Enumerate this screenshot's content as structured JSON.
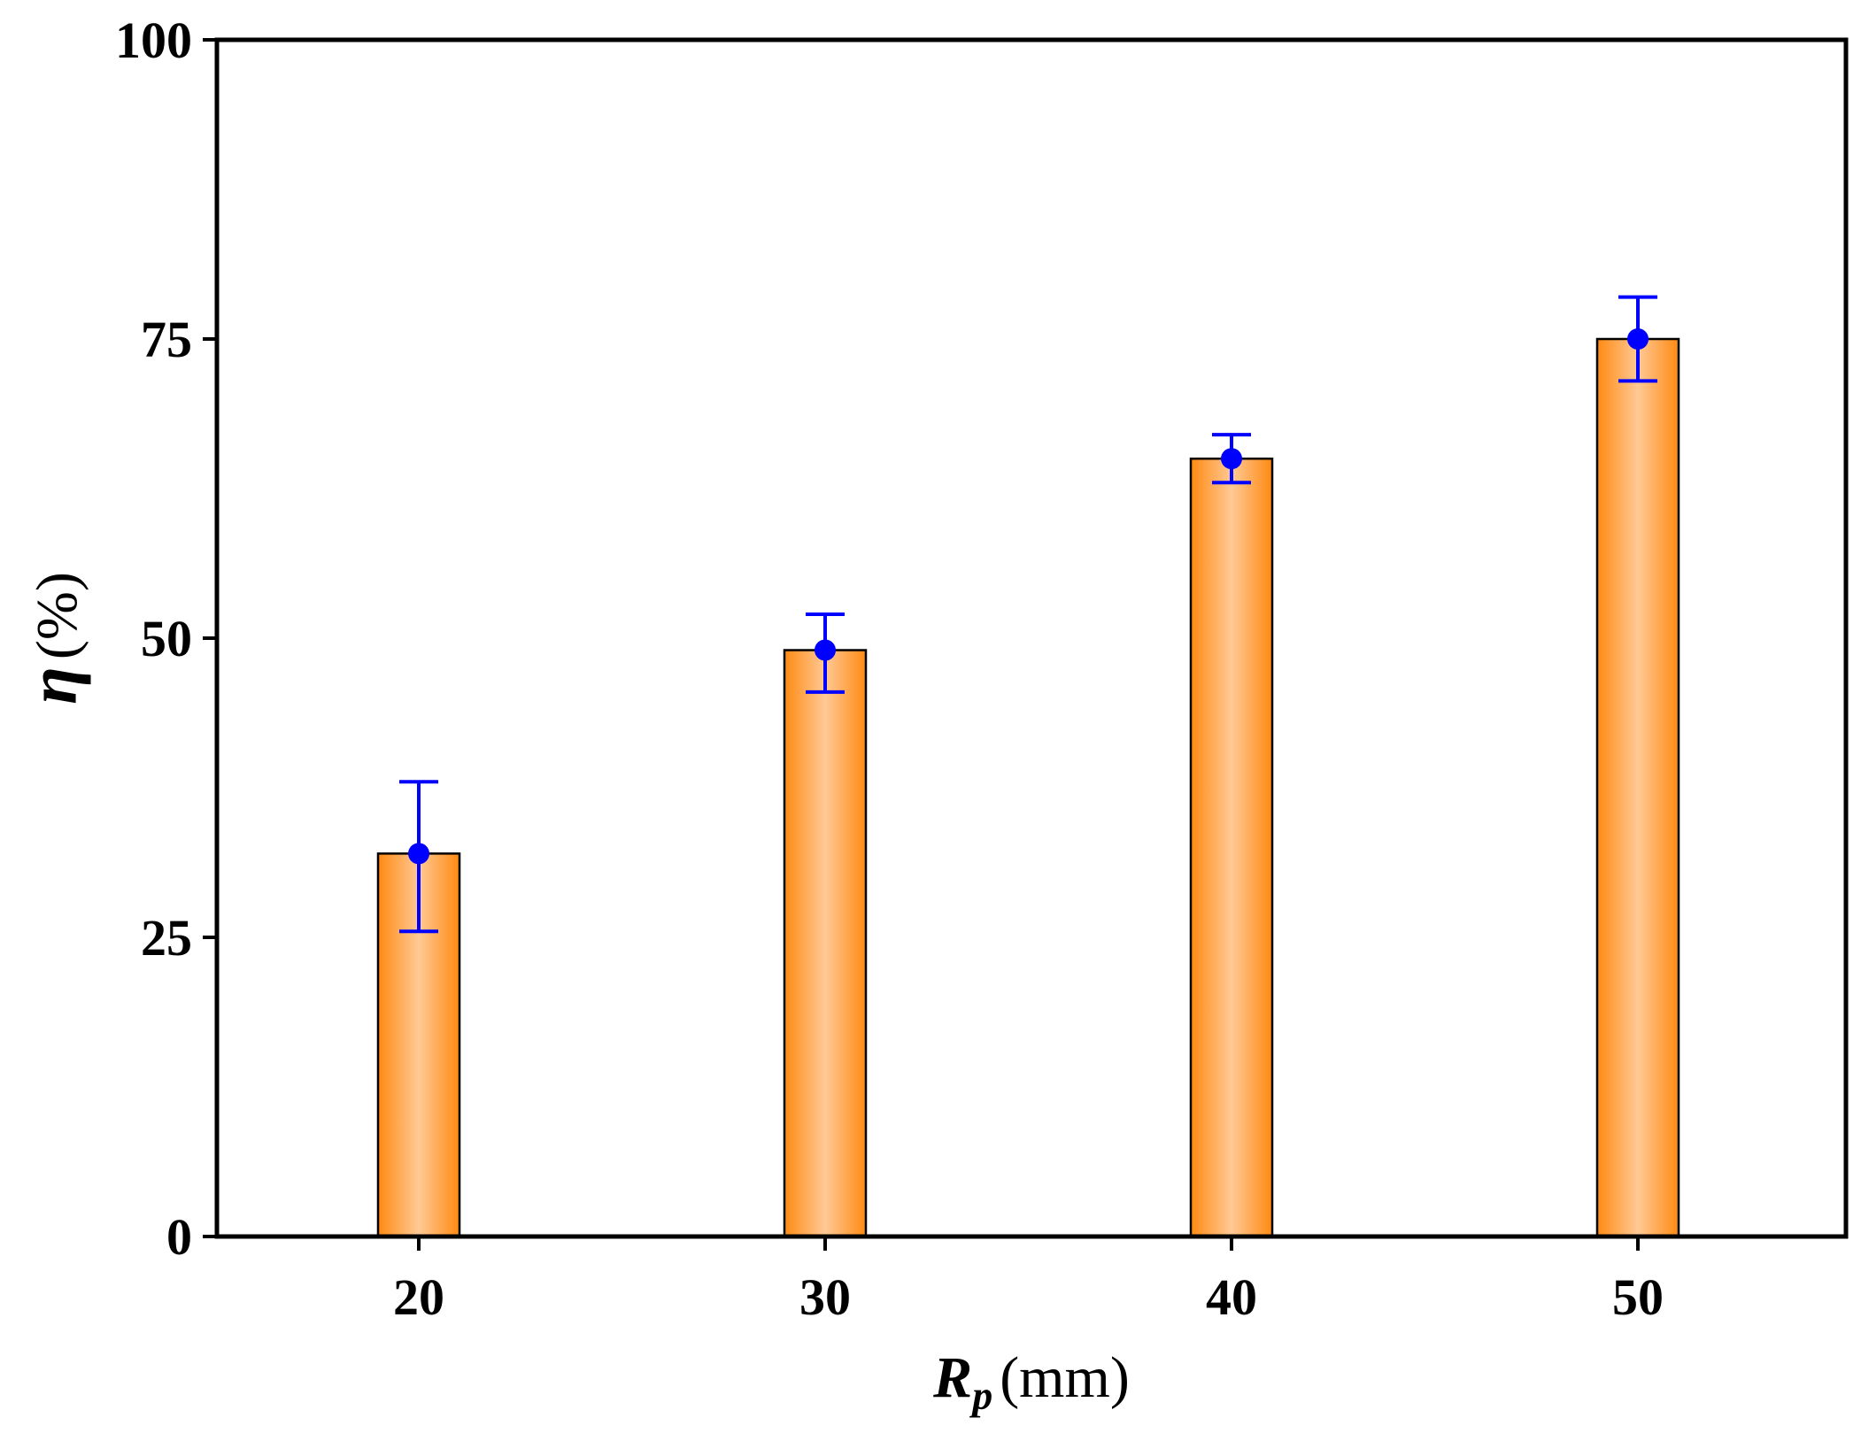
{
  "chart_data": {
    "type": "bar",
    "categories": [
      "20",
      "30",
      "40",
      "50"
    ],
    "values": [
      32,
      49,
      65,
      75
    ],
    "errors_upper": [
      6,
      3,
      2,
      3.5
    ],
    "errors_lower": [
      6.5,
      3.5,
      2,
      3.5
    ],
    "ylim": [
      0,
      100
    ],
    "yticks": [
      "0",
      "25",
      "50",
      "75",
      "100"
    ],
    "xlabel": {
      "symbol": "R",
      "subscript": "p",
      "unit": "(mm)"
    },
    "ylabel": {
      "symbol": "η",
      "unit": "(%)"
    },
    "grid": false,
    "colors": {
      "bar_edge": "#ff8a12",
      "bar_center": "#ffc995",
      "bar_outline": "#000000",
      "error": "#0000ff"
    }
  }
}
